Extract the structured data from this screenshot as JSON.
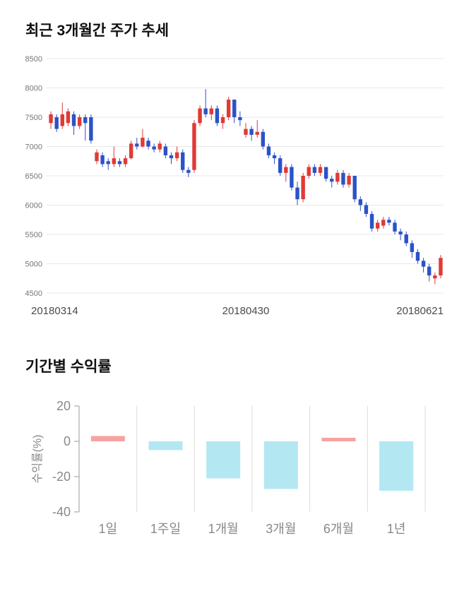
{
  "chart_data": [
    {
      "type": "candlestick",
      "title": "최근 3개월간 주가 추세",
      "x_tick_labels": [
        "20180314",
        "20180430",
        "20180621"
      ],
      "ylim": [
        4500,
        8500
      ],
      "y_ticks": [
        8500,
        8000,
        7500,
        7000,
        6500,
        6000,
        5500,
        5000,
        4500
      ],
      "grid": true,
      "up_color": "#e03a36",
      "down_color": "#2b52c8",
      "candles": [
        [
          7400,
          7600,
          7300,
          7550
        ],
        [
          7500,
          7550,
          7250,
          7300
        ],
        [
          7350,
          7750,
          7300,
          7550
        ],
        [
          7400,
          7650,
          7350,
          7600
        ],
        [
          7550,
          7600,
          7200,
          7350
        ],
        [
          7350,
          7550,
          7300,
          7500
        ],
        [
          7500,
          7550,
          7100,
          7400
        ],
        [
          7500,
          7550,
          7050,
          7100
        ],
        [
          6750,
          6950,
          6700,
          6900
        ],
        [
          6850,
          6900,
          6650,
          6700
        ],
        [
          6750,
          6800,
          6600,
          6700
        ],
        [
          6700,
          7000,
          6650,
          6800
        ],
        [
          6750,
          6800,
          6650,
          6700
        ],
        [
          6700,
          6850,
          6650,
          6800
        ],
        [
          6800,
          7100,
          6780,
          7050
        ],
        [
          7050,
          7150,
          6950,
          7000
        ],
        [
          7000,
          7300,
          6980,
          7150
        ],
        [
          7100,
          7150,
          6950,
          7000
        ],
        [
          7000,
          7050,
          6900,
          6950
        ],
        [
          6950,
          7100,
          6900,
          7050
        ],
        [
          7000,
          7050,
          6800,
          6850
        ],
        [
          6850,
          6900,
          6700,
          6800
        ],
        [
          6800,
          7000,
          6750,
          6900
        ],
        [
          6900,
          6950,
          6550,
          6600
        ],
        [
          6600,
          6650,
          6480,
          6550
        ],
        [
          6600,
          7450,
          6550,
          7400
        ],
        [
          7400,
          7700,
          7350,
          7650
        ],
        [
          7650,
          7980,
          7500,
          7550
        ],
        [
          7550,
          7700,
          7450,
          7650
        ],
        [
          7650,
          7700,
          7350,
          7400
        ],
        [
          7400,
          7550,
          7300,
          7500
        ],
        [
          7500,
          7850,
          7450,
          7800
        ],
        [
          7800,
          7800,
          7400,
          7500
        ],
        [
          7500,
          7600,
          7350,
          7450
        ],
        [
          7200,
          7400,
          7150,
          7300
        ],
        [
          7300,
          7350,
          7100,
          7200
        ],
        [
          7200,
          7450,
          7150,
          7250
        ],
        [
          7250,
          7300,
          6950,
          7000
        ],
        [
          7000,
          7050,
          6800,
          6850
        ],
        [
          6850,
          6900,
          6700,
          6800
        ],
        [
          6800,
          6850,
          6500,
          6550
        ],
        [
          6550,
          6700,
          6400,
          6650
        ],
        [
          6650,
          6700,
          6250,
          6300
        ],
        [
          6300,
          6400,
          6000,
          6100
        ],
        [
          6100,
          6550,
          6050,
          6500
        ],
        [
          6500,
          6700,
          6450,
          6650
        ],
        [
          6650,
          6700,
          6500,
          6550
        ],
        [
          6550,
          6700,
          6500,
          6650
        ],
        [
          6650,
          6650,
          6400,
          6450
        ],
        [
          6450,
          6500,
          6300,
          6400
        ],
        [
          6400,
          6600,
          6350,
          6550
        ],
        [
          6550,
          6600,
          6300,
          6350
        ],
        [
          6350,
          6550,
          6300,
          6500
        ],
        [
          6500,
          6500,
          6050,
          6100
        ],
        [
          6100,
          6150,
          5900,
          6000
        ],
        [
          6000,
          6050,
          5800,
          5850
        ],
        [
          5850,
          5900,
          5550,
          5600
        ],
        [
          5600,
          5750,
          5550,
          5700
        ],
        [
          5650,
          5800,
          5600,
          5750
        ],
        [
          5750,
          5800,
          5650,
          5700
        ],
        [
          5700,
          5750,
          5500,
          5550
        ],
        [
          5550,
          5600,
          5400,
          5500
        ],
        [
          5500,
          5550,
          5300,
          5350
        ],
        [
          5350,
          5400,
          5100,
          5200
        ],
        [
          5200,
          5250,
          5000,
          5050
        ],
        [
          5050,
          5100,
          4850,
          4950
        ],
        [
          4950,
          5000,
          4700,
          4800
        ],
        [
          4750,
          4850,
          4650,
          4800
        ],
        [
          4800,
          5150,
          4750,
          5100
        ]
      ]
    },
    {
      "type": "bar",
      "title": "기간별 수익률",
      "ylabel": "수익률(%)",
      "categories": [
        "1일",
        "1주일",
        "1개월",
        "3개월",
        "6개월",
        "1년"
      ],
      "values": [
        3,
        -5,
        -21,
        -27,
        2,
        -28
      ],
      "ylim": [
        -40,
        20
      ],
      "y_ticks": [
        20,
        0,
        -20,
        -40
      ],
      "grid": true,
      "positive_color": "#f5a3a1",
      "negative_color": "#b3e7f2"
    }
  ]
}
